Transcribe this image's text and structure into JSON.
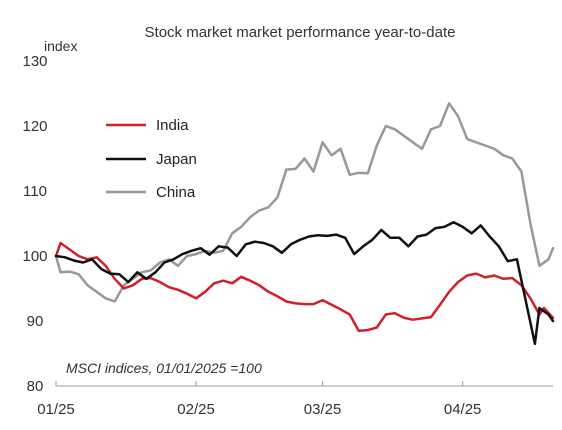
{
  "chart_data": {
    "type": "line",
    "title": "Stock market market performance year-to-date",
    "ylabel": "index",
    "xlabel": "",
    "ylim": [
      80,
      130
    ],
    "yticks": [
      80,
      90,
      100,
      110,
      120,
      130
    ],
    "xlim": [
      "2025-01-01",
      "2025-04-21"
    ],
    "xticks": [
      {
        "date": "2025-01-01",
        "label": "01/25"
      },
      {
        "date": "2025-02-01",
        "label": "02/25"
      },
      {
        "date": "2025-03-01",
        "label": "03/25"
      },
      {
        "date": "2025-04-01",
        "label": "04/25"
      }
    ],
    "grid": false,
    "legend_position": "left",
    "annotation": "MSCI indices, 01/01/2025 =100",
    "series": [
      {
        "name": "India",
        "color": "#d0202a",
        "points": [
          [
            "2025-01-01",
            100
          ],
          [
            "2025-01-02",
            102
          ],
          [
            "2025-01-04",
            101
          ],
          [
            "2025-01-06",
            100
          ],
          [
            "2025-01-08",
            99.5
          ],
          [
            "2025-01-10",
            99.8
          ],
          [
            "2025-01-12",
            98.5
          ],
          [
            "2025-01-14",
            96.5
          ],
          [
            "2025-01-16",
            95
          ],
          [
            "2025-01-18",
            95.5
          ],
          [
            "2025-01-20",
            96.5
          ],
          [
            "2025-01-22",
            96.6
          ],
          [
            "2025-01-24",
            96
          ],
          [
            "2025-01-26",
            95.2
          ],
          [
            "2025-01-28",
            94.8
          ],
          [
            "2025-01-30",
            94.2
          ],
          [
            "2025-02-01",
            93.5
          ],
          [
            "2025-02-03",
            94.5
          ],
          [
            "2025-02-05",
            95.8
          ],
          [
            "2025-02-07",
            96.2
          ],
          [
            "2025-02-09",
            95.8
          ],
          [
            "2025-02-11",
            96.8
          ],
          [
            "2025-02-13",
            96.2
          ],
          [
            "2025-02-15",
            95.5
          ],
          [
            "2025-02-17",
            94.5
          ],
          [
            "2025-02-19",
            93.8
          ],
          [
            "2025-02-21",
            93
          ],
          [
            "2025-02-23",
            92.7
          ],
          [
            "2025-02-25",
            92.6
          ],
          [
            "2025-02-27",
            92.6
          ],
          [
            "2025-03-01",
            93.2
          ],
          [
            "2025-03-03",
            92.5
          ],
          [
            "2025-03-05",
            91.8
          ],
          [
            "2025-03-07",
            91
          ],
          [
            "2025-03-09",
            88.5
          ],
          [
            "2025-03-11",
            88.6
          ],
          [
            "2025-03-13",
            89
          ],
          [
            "2025-03-15",
            91
          ],
          [
            "2025-03-17",
            91.2
          ],
          [
            "2025-03-19",
            90.5
          ],
          [
            "2025-03-21",
            90.2
          ],
          [
            "2025-03-23",
            90.4
          ],
          [
            "2025-03-25",
            90.6
          ],
          [
            "2025-03-27",
            92.5
          ],
          [
            "2025-03-29",
            94.5
          ],
          [
            "2025-03-31",
            96
          ],
          [
            "2025-04-02",
            97
          ],
          [
            "2025-04-04",
            97.3
          ],
          [
            "2025-04-06",
            96.7
          ],
          [
            "2025-04-08",
            97
          ],
          [
            "2025-04-10",
            96.5
          ],
          [
            "2025-04-12",
            96.6
          ],
          [
            "2025-04-14",
            95.5
          ],
          [
            "2025-04-16",
            93.5
          ],
          [
            "2025-04-18",
            91
          ],
          [
            "2025-04-19",
            92
          ],
          [
            "2025-04-21",
            90.5
          ]
        ]
      },
      {
        "name": "Japan",
        "color": "#111111",
        "points": [
          [
            "2025-01-01",
            100
          ],
          [
            "2025-01-03",
            99.8
          ],
          [
            "2025-01-05",
            99.3
          ],
          [
            "2025-01-07",
            99
          ],
          [
            "2025-01-09",
            99.5
          ],
          [
            "2025-01-11",
            98
          ],
          [
            "2025-01-13",
            97.3
          ],
          [
            "2025-01-15",
            97.2
          ],
          [
            "2025-01-17",
            96
          ],
          [
            "2025-01-19",
            97.5
          ],
          [
            "2025-01-21",
            96.5
          ],
          [
            "2025-01-23",
            97.5
          ],
          [
            "2025-01-25",
            99
          ],
          [
            "2025-01-27",
            99.5
          ],
          [
            "2025-01-29",
            100.3
          ],
          [
            "2025-01-31",
            100.8
          ],
          [
            "2025-02-02",
            101.2
          ],
          [
            "2025-02-04",
            100.2
          ],
          [
            "2025-02-06",
            101.5
          ],
          [
            "2025-02-08",
            101.3
          ],
          [
            "2025-02-10",
            100
          ],
          [
            "2025-02-12",
            101.8
          ],
          [
            "2025-02-14",
            102.2
          ],
          [
            "2025-02-16",
            102
          ],
          [
            "2025-02-18",
            101.5
          ],
          [
            "2025-02-20",
            100.5
          ],
          [
            "2025-02-22",
            101.8
          ],
          [
            "2025-02-24",
            102.5
          ],
          [
            "2025-02-26",
            103
          ],
          [
            "2025-02-28",
            103.2
          ],
          [
            "2025-03-02",
            103.1
          ],
          [
            "2025-03-04",
            103.3
          ],
          [
            "2025-03-06",
            102.8
          ],
          [
            "2025-03-08",
            100.3
          ],
          [
            "2025-03-10",
            101.5
          ],
          [
            "2025-03-12",
            102.5
          ],
          [
            "2025-03-14",
            104
          ],
          [
            "2025-03-16",
            102.8
          ],
          [
            "2025-03-18",
            102.8
          ],
          [
            "2025-03-20",
            101.5
          ],
          [
            "2025-03-22",
            103
          ],
          [
            "2025-03-24",
            103.3
          ],
          [
            "2025-03-26",
            104.3
          ],
          [
            "2025-03-28",
            104.5
          ],
          [
            "2025-03-30",
            105.2
          ],
          [
            "2025-04-01",
            104.5
          ],
          [
            "2025-04-03",
            103.5
          ],
          [
            "2025-04-05",
            104.7
          ],
          [
            "2025-04-07",
            103
          ],
          [
            "2025-04-09",
            101.5
          ],
          [
            "2025-04-11",
            99.2
          ],
          [
            "2025-04-13",
            99.5
          ],
          [
            "2025-04-15",
            93
          ],
          [
            "2025-04-17",
            86.5
          ],
          [
            "2025-04-18",
            92
          ],
          [
            "2025-04-20",
            91
          ],
          [
            "2025-04-21",
            90
          ]
        ]
      },
      {
        "name": "China",
        "color": "#999999",
        "points": [
          [
            "2025-01-01",
            100
          ],
          [
            "2025-01-02",
            97.5
          ],
          [
            "2025-01-04",
            97.6
          ],
          [
            "2025-01-06",
            97.2
          ],
          [
            "2025-01-08",
            95.5
          ],
          [
            "2025-01-10",
            94.5
          ],
          [
            "2025-01-12",
            93.5
          ],
          [
            "2025-01-14",
            93
          ],
          [
            "2025-01-16",
            95.5
          ],
          [
            "2025-01-18",
            96.5
          ],
          [
            "2025-01-20",
            97.5
          ],
          [
            "2025-01-22",
            97.8
          ],
          [
            "2025-01-24",
            99
          ],
          [
            "2025-01-26",
            99.5
          ],
          [
            "2025-01-28",
            98.5
          ],
          [
            "2025-01-30",
            100
          ],
          [
            "2025-02-01",
            100.3
          ],
          [
            "2025-02-03",
            100.8
          ],
          [
            "2025-02-05",
            100.5
          ],
          [
            "2025-02-07",
            100.8
          ],
          [
            "2025-02-09",
            103.5
          ],
          [
            "2025-02-11",
            104.5
          ],
          [
            "2025-02-13",
            106
          ],
          [
            "2025-02-15",
            107
          ],
          [
            "2025-02-17",
            107.5
          ],
          [
            "2025-02-19",
            109
          ],
          [
            "2025-02-21",
            113.3
          ],
          [
            "2025-02-23",
            113.4
          ],
          [
            "2025-02-25",
            115
          ],
          [
            "2025-02-27",
            113
          ],
          [
            "2025-03-01",
            117.5
          ],
          [
            "2025-03-03",
            115.5
          ],
          [
            "2025-03-05",
            116.5
          ],
          [
            "2025-03-07",
            112.5
          ],
          [
            "2025-03-09",
            112.8
          ],
          [
            "2025-03-11",
            112.7
          ],
          [
            "2025-03-13",
            117
          ],
          [
            "2025-03-15",
            120
          ],
          [
            "2025-03-17",
            119.5
          ],
          [
            "2025-03-19",
            118.5
          ],
          [
            "2025-03-21",
            117.5
          ],
          [
            "2025-03-23",
            116.5
          ],
          [
            "2025-03-25",
            119.5
          ],
          [
            "2025-03-27",
            120
          ],
          [
            "2025-03-29",
            123.5
          ],
          [
            "2025-03-31",
            121.5
          ],
          [
            "2025-04-02",
            118
          ],
          [
            "2025-04-04",
            117.5
          ],
          [
            "2025-04-06",
            117
          ],
          [
            "2025-04-08",
            116.5
          ],
          [
            "2025-04-10",
            115.5
          ],
          [
            "2025-04-12",
            115
          ],
          [
            "2025-04-14",
            113
          ],
          [
            "2025-04-16",
            105
          ],
          [
            "2025-04-18",
            98.5
          ],
          [
            "2025-04-20",
            99.5
          ],
          [
            "2025-04-21",
            101.2
          ]
        ]
      }
    ]
  }
}
